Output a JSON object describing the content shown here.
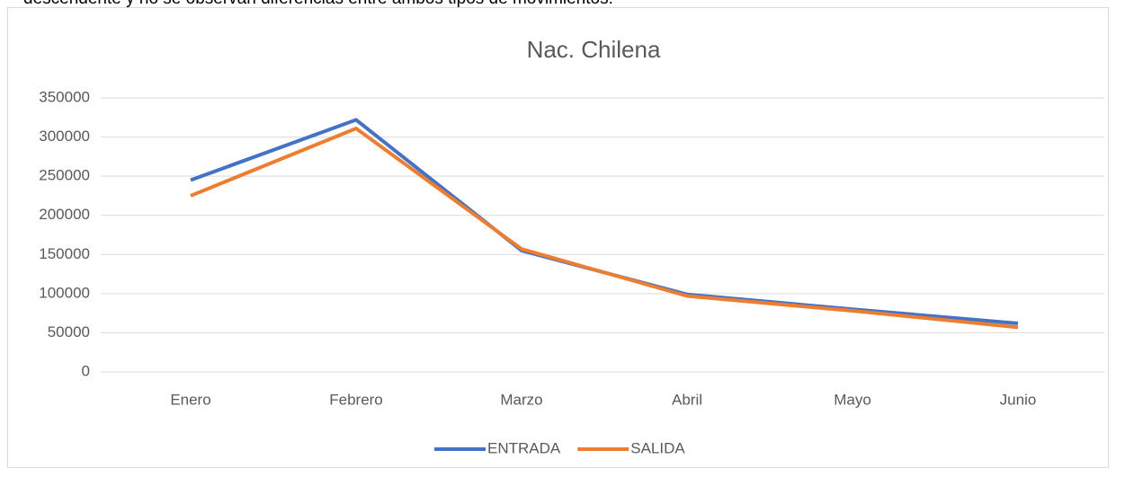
{
  "text_above": "descendente y no se observan diferencias entre ambos tipos de movimientos.",
  "chart_data": {
    "type": "line",
    "title": "Nac. Chilena",
    "categories": [
      "Enero",
      "Febrero",
      "Marzo",
      "Abril",
      "Mayo",
      "Junio"
    ],
    "series": [
      {
        "name": "ENTRADA",
        "color": "#4472c4",
        "values": [
          245000,
          322000,
          155000,
          99000,
          80000,
          62000
        ]
      },
      {
        "name": "SALIDA",
        "color": "#ed7d31",
        "values": [
          225000,
          311000,
          157000,
          97000,
          78000,
          57000
        ]
      }
    ],
    "ylim": [
      0,
      350000
    ],
    "yticks": [
      0,
      50000,
      100000,
      150000,
      200000,
      250000,
      300000,
      350000
    ],
    "grid": true,
    "legend": "bottom"
  }
}
